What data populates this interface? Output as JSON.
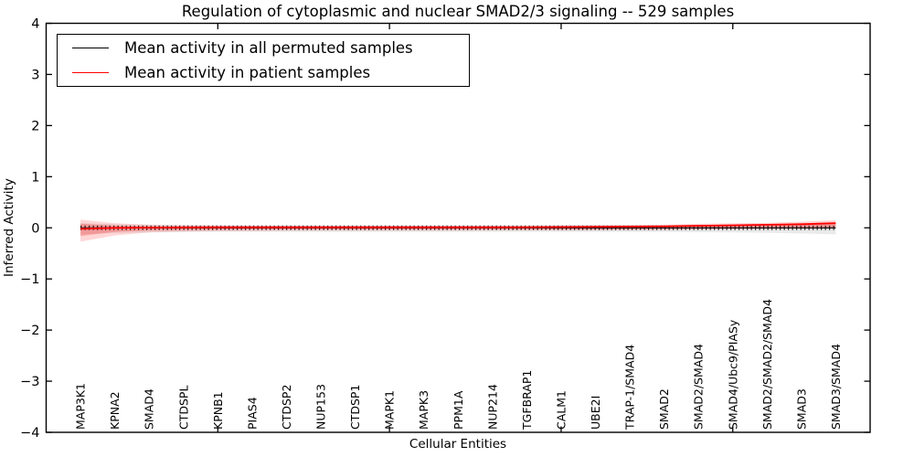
{
  "chart_data": {
    "type": "line",
    "title": "Regulation of cytoplasmic and nuclear SMAD2/3 signaling -- 529 samples",
    "xlabel": "Cellular Entities",
    "ylabel": "Inferred Activity",
    "ylim": [
      -4,
      4
    ],
    "yticks": [
      4,
      3,
      2,
      1,
      0,
      -1,
      -2,
      -3,
      -4
    ],
    "ytick_labels": [
      "4",
      "3",
      "2",
      "1",
      "0",
      "−1",
      "−2",
      "−3",
      "−4"
    ],
    "xtick_indices": [
      4,
      9,
      14,
      19
    ],
    "grid": false,
    "legend_position": "upper left",
    "categories": [
      "MAP3K1",
      "KPNA2",
      "SMAD4",
      "CTDSPL",
      "KPNB1",
      "PIAS4",
      "CTDSP2",
      "NUP153",
      "CTDSP1",
      "MAPK1",
      "MAPK3",
      "PPM1A",
      "NUP214",
      "TGFBRAP1",
      "CALM1",
      "UBE2I",
      "TRAP-1/SMAD4",
      "SMAD2",
      "SMAD2/SMAD4",
      "SMAD4/Ubc9/PIASy",
      "SMAD2/SMAD2/SMAD4",
      "SMAD3",
      "SMAD3/SMAD4"
    ],
    "series": [
      {
        "name": "Mean activity in all permuted samples",
        "color": "#000000",
        "band_color": "#888888",
        "values": [
          0,
          0,
          0,
          0,
          0,
          0,
          0,
          0,
          0,
          0,
          0,
          0,
          0,
          0,
          0,
          0,
          0,
          0,
          0,
          0,
          0,
          0,
          0
        ],
        "band_upper": [
          0.09,
          0.07,
          0.06,
          0.055,
          0.05,
          0.05,
          0.05,
          0.05,
          0.05,
          0.05,
          0.05,
          0.05,
          0.05,
          0.05,
          0.05,
          0.05,
          0.05,
          0.05,
          0.05,
          0.055,
          0.06,
          0.065,
          0.07
        ],
        "band_lower": [
          -0.13,
          -0.1,
          -0.09,
          -0.085,
          -0.08,
          -0.08,
          -0.08,
          -0.08,
          -0.08,
          -0.08,
          -0.08,
          -0.08,
          -0.08,
          -0.08,
          -0.08,
          -0.08,
          -0.08,
          -0.08,
          -0.085,
          -0.09,
          -0.1,
          -0.11,
          -0.13
        ]
      },
      {
        "name": "Mean activity in patient samples",
        "color": "#ff0000",
        "band_color": "#ff0000",
        "values": [
          -0.04,
          -0.02,
          -0.015,
          -0.012,
          -0.01,
          -0.01,
          -0.01,
          -0.01,
          -0.01,
          -0.01,
          -0.01,
          -0.01,
          -0.01,
          -0.008,
          -0.005,
          0,
          0.005,
          0.01,
          0.02,
          0.03,
          0.04,
          0.05,
          0.07
        ],
        "band_upper": [
          0.16,
          0.09,
          0.06,
          0.05,
          0.045,
          0.04,
          0.04,
          0.04,
          0.04,
          0.04,
          0.04,
          0.04,
          0.04,
          0.04,
          0.045,
          0.05,
          0.055,
          0.06,
          0.08,
          0.09,
          0.1,
          0.12,
          0.15
        ],
        "band_lower": [
          -0.27,
          -0.15,
          -0.09,
          -0.07,
          -0.06,
          -0.06,
          -0.055,
          -0.055,
          -0.055,
          -0.055,
          -0.055,
          -0.055,
          -0.05,
          -0.05,
          -0.05,
          -0.05,
          -0.045,
          -0.04,
          -0.035,
          -0.03,
          -0.025,
          -0.02,
          -0.02
        ],
        "band_inner_upper": [
          0.08,
          0.04,
          0.025,
          0.02,
          0.018,
          0.015,
          0.015,
          0.015,
          0.015,
          0.015,
          0.015,
          0.015,
          0.015,
          0.015,
          0.018,
          0.02,
          0.025,
          0.03,
          0.04,
          0.05,
          0.06,
          0.07,
          0.1
        ],
        "band_inner_lower": [
          -0.16,
          -0.08,
          -0.05,
          -0.04,
          -0.035,
          -0.03,
          -0.03,
          -0.03,
          -0.03,
          -0.03,
          -0.03,
          -0.03,
          -0.03,
          -0.03,
          -0.03,
          -0.03,
          -0.025,
          -0.02,
          -0.015,
          -0.012,
          -0.01,
          -0.008,
          -0.005
        ]
      }
    ]
  }
}
